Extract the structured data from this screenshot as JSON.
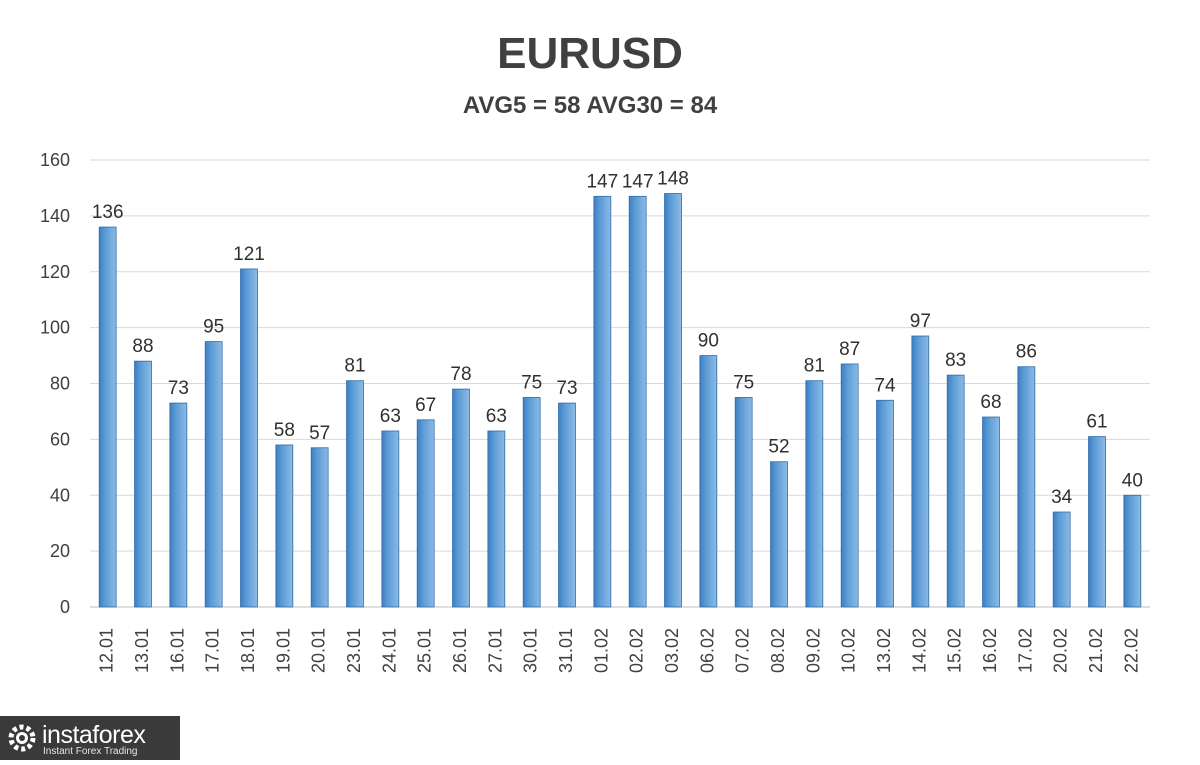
{
  "chart_data": {
    "type": "bar",
    "title": "EURUSD",
    "subtitle": "AVG5 = 58 AVG30 = 84",
    "categories": [
      "12.01",
      "13.01",
      "16.01",
      "17.01",
      "18.01",
      "19.01",
      "20.01",
      "23.01",
      "24.01",
      "25.01",
      "26.01",
      "27.01",
      "30.01",
      "31.01",
      "01.02",
      "02.02",
      "03.02",
      "06.02",
      "07.02",
      "08.02",
      "09.02",
      "10.02",
      "13.02",
      "14.02",
      "15.02",
      "16.02",
      "17.02",
      "20.02",
      "21.02",
      "22.02"
    ],
    "values": [
      136,
      88,
      73,
      95,
      121,
      58,
      57,
      81,
      63,
      67,
      78,
      63,
      75,
      73,
      147,
      147,
      148,
      90,
      75,
      52,
      81,
      87,
      74,
      97,
      83,
      68,
      86,
      34,
      61,
      40
    ],
    "ylim": [
      0,
      160
    ],
    "yticks": [
      0,
      20,
      40,
      60,
      80,
      100,
      120,
      140,
      160
    ],
    "grid": true,
    "bar_color": "#5b9bd5"
  },
  "watermark": {
    "name": "instaforex",
    "tagline": "Instant Forex Trading"
  }
}
